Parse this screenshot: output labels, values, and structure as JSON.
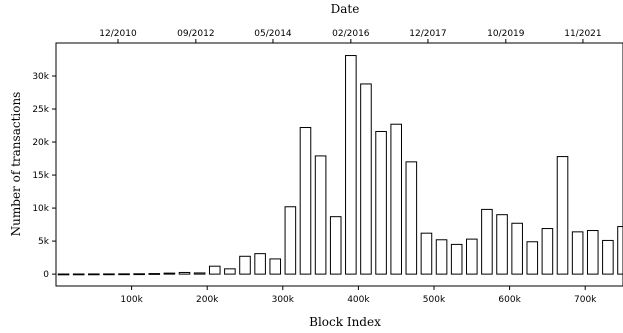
{
  "chart_data": {
    "type": "bar",
    "xlabel": "Block Index",
    "ylabel": "Number of transactions",
    "top_axis_label": "Date",
    "xlim": [
      0,
      750000
    ],
    "ylim": [
      -1800,
      35000
    ],
    "bar_width": 14000,
    "x_ticks": [
      {
        "value": 100000,
        "label": "100k"
      },
      {
        "value": 200000,
        "label": "200k"
      },
      {
        "value": 300000,
        "label": "300k"
      },
      {
        "value": 400000,
        "label": "400k"
      },
      {
        "value": 500000,
        "label": "500k"
      },
      {
        "value": 600000,
        "label": "600k"
      },
      {
        "value": 700000,
        "label": "700k"
      }
    ],
    "y_ticks": [
      {
        "value": 0,
        "label": "0"
      },
      {
        "value": 5000,
        "label": "5k"
      },
      {
        "value": 10000,
        "label": "10k"
      },
      {
        "value": 15000,
        "label": "15k"
      },
      {
        "value": 20000,
        "label": "20k"
      },
      {
        "value": 25000,
        "label": "25k"
      },
      {
        "value": 30000,
        "label": "30k"
      }
    ],
    "top_ticks": [
      {
        "value": 82000,
        "label": "12/2010"
      },
      {
        "value": 185000,
        "label": "09/2012"
      },
      {
        "value": 287000,
        "label": "05/2014"
      },
      {
        "value": 390000,
        "label": "02/2016"
      },
      {
        "value": 492000,
        "label": "12/2017"
      },
      {
        "value": 595000,
        "label": "10/2019"
      },
      {
        "value": 697000,
        "label": "11/2021"
      }
    ],
    "x": [
      10000,
      30000,
      50000,
      70000,
      90000,
      110000,
      130000,
      150000,
      170000,
      190000,
      210000,
      230000,
      250000,
      270000,
      290000,
      310000,
      330000,
      350000,
      370000,
      390000,
      410000,
      430000,
      450000,
      470000,
      490000,
      510000,
      530000,
      550000,
      570000,
      590000,
      610000,
      630000,
      650000,
      670000,
      690000,
      710000,
      730000,
      750000
    ],
    "values": [
      15,
      20,
      25,
      30,
      40,
      50,
      80,
      150,
      250,
      180,
      1200,
      800,
      2700,
      3100,
      2300,
      10200,
      22200,
      17900,
      8700,
      33100,
      28800,
      21600,
      22700,
      17000,
      6200,
      5200,
      4500,
      5300,
      9800,
      9000,
      7700,
      4900,
      6900,
      17800,
      6400,
      6600,
      5100,
      7200
    ]
  }
}
